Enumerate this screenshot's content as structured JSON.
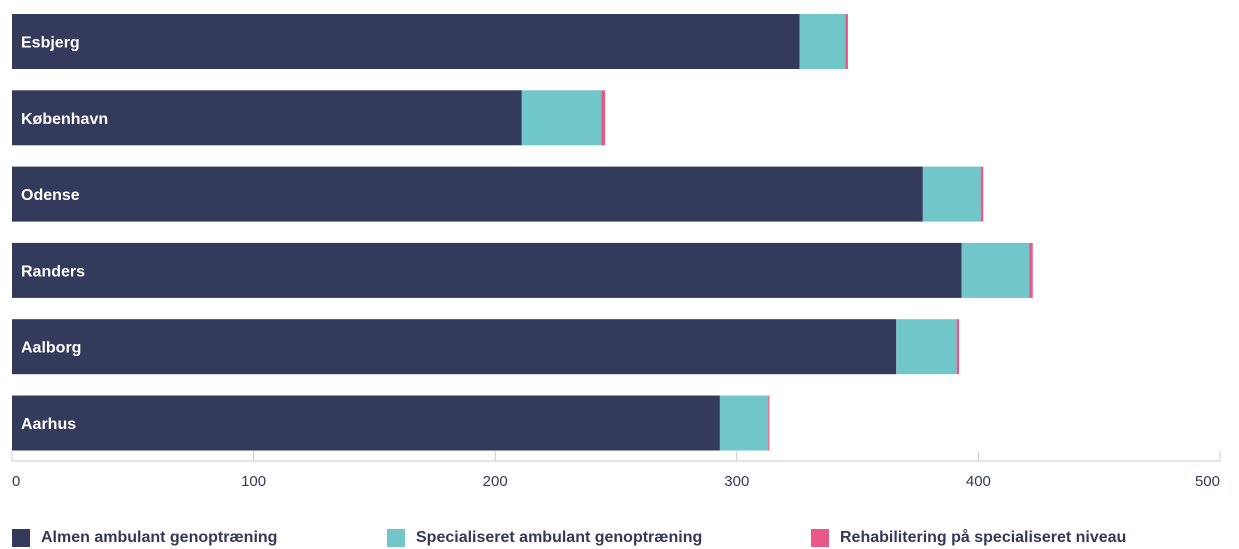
{
  "chart_data": {
    "type": "bar",
    "orientation": "horizontal",
    "stacked": true,
    "categories": [
      "Esbjerg",
      "København",
      "Odense",
      "Randers",
      "Aalborg",
      "Aarhus"
    ],
    "series": [
      {
        "name": "Almen ambulant genoptræning",
        "color": "#333a5b",
        "values": [
          326,
          211,
          377,
          393,
          366,
          293
        ]
      },
      {
        "name": "Specialiseret ambulant genoptræning",
        "color": "#71c6c9",
        "values": [
          19,
          33,
          24,
          28,
          25,
          20
        ]
      },
      {
        "name": "Rehabilitering på specialiseret niveau",
        "color": "#e85a85",
        "values": [
          1,
          1.5,
          1,
          1.5,
          1,
          0.5
        ]
      }
    ],
    "x_ticks": [
      0,
      100,
      200,
      300,
      400,
      500
    ],
    "xlim": [
      0,
      500
    ],
    "grid": false,
    "legend_position": "bottom"
  }
}
